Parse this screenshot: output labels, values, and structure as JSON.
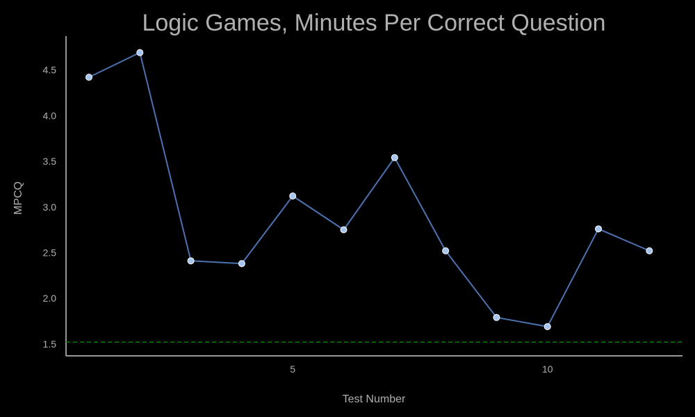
{
  "chart_data": {
    "type": "line",
    "title": "Logic Games, Minutes Per Correct Question",
    "xlabel": "Test Number",
    "ylabel": "MPCQ",
    "x": [
      1,
      2,
      3,
      4,
      5,
      6,
      7,
      8,
      9,
      10,
      11,
      12
    ],
    "series": [
      {
        "values": [
          4.42,
          4.69,
          2.41,
          2.38,
          3.12,
          2.75,
          3.54,
          2.52,
          1.79,
          1.69,
          2.76,
          2.52
        ]
      }
    ],
    "x_ticks": [
      5,
      10
    ],
    "y_ticks": [
      1.5,
      2.0,
      2.5,
      3.0,
      3.5,
      4.0,
      4.5
    ],
    "xlim": [
      0.55,
      12.65
    ],
    "ylim": [
      1.37,
      4.87
    ],
    "reference_line": {
      "y": 1.52,
      "style": "dashed",
      "color": "#008000"
    },
    "grid": false,
    "colors": {
      "background": "#000000",
      "line": "#4c72b0",
      "marker_fill": "#a6c4f0",
      "marker_edge": "#ffffff",
      "axis": "#c8c8c8",
      "text": "#b0b0b0"
    }
  }
}
